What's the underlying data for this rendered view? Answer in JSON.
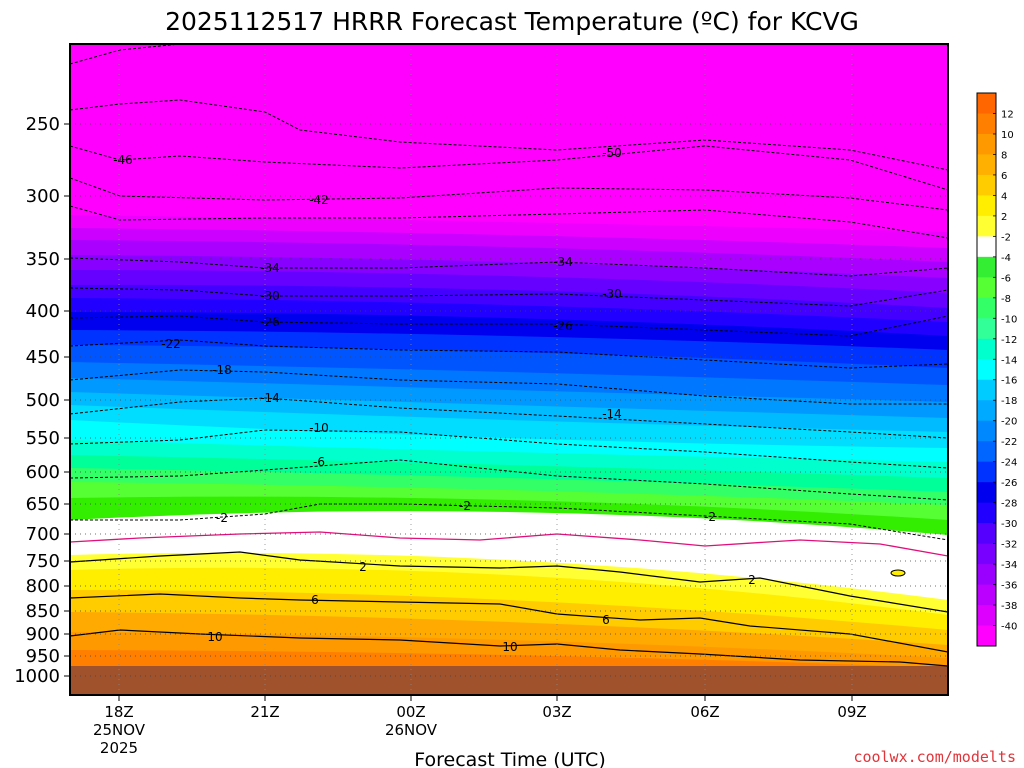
{
  "chart_data": {
    "type": "heatmap",
    "title": "2025112517 HRRR Forecast Temperature (ºC) for KCVG",
    "xlabel": "Forecast Time (UTC)",
    "ylabel": "",
    "credit": "coolwx.com/modelts",
    "y_ticks": [
      "250",
      "300",
      "350",
      "400",
      "450",
      "500",
      "550",
      "600",
      "650",
      "700",
      "750",
      "800",
      "850",
      "900",
      "950",
      "1000"
    ],
    "x_ticks": [
      {
        "label": "18Z",
        "sub1": "25NOV",
        "sub2": "2025"
      },
      {
        "label": "21Z",
        "sub1": "",
        "sub2": ""
      },
      {
        "label": "00Z",
        "sub1": "26NOV",
        "sub2": ""
      },
      {
        "label": "03Z",
        "sub1": "",
        "sub2": ""
      },
      {
        "label": "06Z",
        "sub1": "",
        "sub2": ""
      },
      {
        "label": "09Z",
        "sub1": "",
        "sub2": ""
      }
    ],
    "colorbar": {
      "labels": [
        "12",
        "10",
        "8",
        "6",
        "4",
        "2",
        "-2",
        "-4",
        "-6",
        "-8",
        "-10",
        "-12",
        "-14",
        "-16",
        "-18",
        "-20",
        "-22",
        "-24",
        "-26",
        "-28",
        "-30",
        "-32",
        "-34",
        "-36",
        "-38",
        "-40"
      ],
      "colors": [
        "#ff6600",
        "#ff7f00",
        "#ff9900",
        "#ffb000",
        "#ffcc00",
        "#ffee00",
        "#ffff33",
        "#ffffff",
        "#33ee33",
        "#55ff33",
        "#33ff66",
        "#33ff99",
        "#00ffcc",
        "#00ffff",
        "#00ccff",
        "#00aaff",
        "#0088ff",
        "#0066ff",
        "#0033ff",
        "#0000ee",
        "#2200ff",
        "#5500ff",
        "#7700ff",
        "#9900ff",
        "#bb00ff",
        "#dd00ff",
        "#ff00ff"
      ]
    },
    "band_colors": [
      {
        "temp": -44,
        "color": "#ff00ff"
      },
      {
        "temp": -40,
        "color": "#ee00ff"
      },
      {
        "temp": -38,
        "color": "#cc00ff"
      },
      {
        "temp": -36,
        "color": "#aa00ff"
      },
      {
        "temp": -34,
        "color": "#8800ff"
      },
      {
        "temp": -32,
        "color": "#6600ff"
      },
      {
        "temp": -30,
        "color": "#4400ff"
      },
      {
        "temp": -28,
        "color": "#2200ff"
      },
      {
        "temp": -26,
        "color": "#0000ee"
      },
      {
        "temp": -24,
        "color": "#0033ff"
      },
      {
        "temp": -22,
        "color": "#0055ff"
      },
      {
        "temp": -20,
        "color": "#0077ff"
      },
      {
        "temp": -18,
        "color": "#0099ff"
      },
      {
        "temp": -16,
        "color": "#00bbff"
      },
      {
        "temp": -14,
        "color": "#00ddff"
      },
      {
        "temp": -12,
        "color": "#00ffff"
      },
      {
        "temp": -10,
        "color": "#00ffcc"
      },
      {
        "temp": -8,
        "color": "#00ff99"
      },
      {
        "temp": -6,
        "color": "#33ff66"
      },
      {
        "temp": -4,
        "color": "#55ff33"
      },
      {
        "temp": -2,
        "color": "#33ee00"
      },
      {
        "temp": 2,
        "color": "#ffffff"
      },
      {
        "temp": 4,
        "color": "#ffff33"
      },
      {
        "temp": 6,
        "color": "#ffee00"
      },
      {
        "temp": 8,
        "color": "#ffcc00"
      },
      {
        "temp": 10,
        "color": "#ffaa00"
      },
      {
        "temp": 12,
        "color": "#ff9900"
      },
      {
        "temp": 14,
        "color": "#ff7f00"
      }
    ],
    "contour_labels": [
      "-46",
      "-50",
      "-42",
      "-34",
      "-34",
      "-30",
      "-30",
      "-26",
      "-26",
      "-22",
      "-18",
      "-14",
      "-14",
      "-10",
      "-6",
      "-2",
      "-2",
      "-2",
      "2",
      "2",
      "6",
      "6",
      "10",
      "10"
    ],
    "ground_color": "#a0522d",
    "freezing_line_color": "#e0107a"
  }
}
